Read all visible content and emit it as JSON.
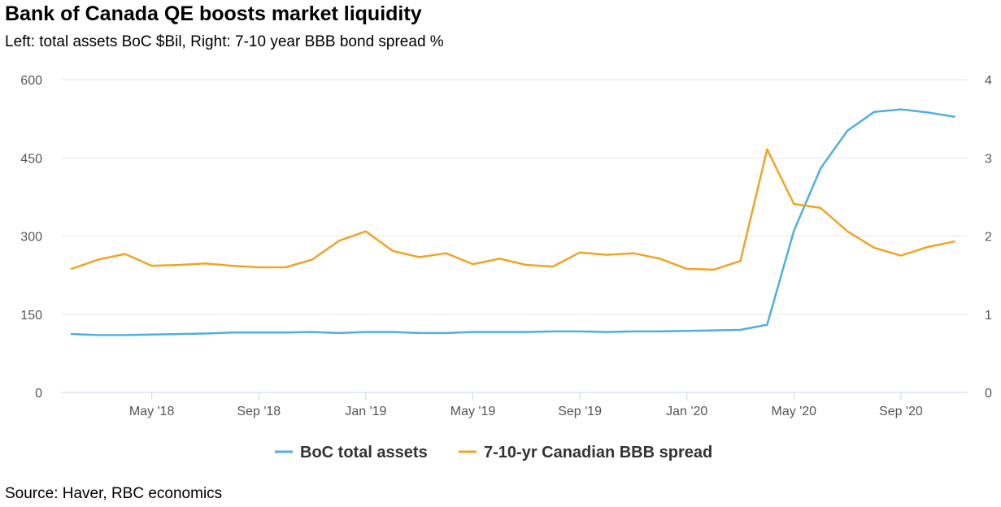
{
  "title": "Bank of Canada QE boosts market liquidity",
  "subtitle": "Left: total assets BoC $Bil, Right: 7-10 year BBB bond spread %",
  "source": "Source: Haver, RBC economics",
  "colors": {
    "assets": "#4fb0dc",
    "spread": "#f0a425",
    "grid": "#e6e6e6",
    "axis": "#ccd6eb"
  },
  "chart_data": {
    "type": "line",
    "title": "Bank of Canada QE boosts market liquidity",
    "subtitle": "Left: total assets BoC $Bil, Right: 7-10 year BBB bond spread %",
    "x": [
      "Feb '18",
      "Mar '18",
      "Apr '18",
      "May '18",
      "Jun '18",
      "Jul '18",
      "Aug '18",
      "Sep '18",
      "Oct '18",
      "Nov '18",
      "Dec '18",
      "Jan '19",
      "Feb '19",
      "Mar '19",
      "Apr '19",
      "May '19",
      "Jun '19",
      "Jul '19",
      "Aug '19",
      "Sep '19",
      "Oct '19",
      "Nov '19",
      "Dec '19",
      "Jan '20",
      "Feb '20",
      "Mar '20",
      "Apr '20",
      "May '20",
      "Jun '20",
      "Jul '20",
      "Aug '20",
      "Sep '20",
      "Oct '20",
      "Nov '20"
    ],
    "x_tick_labels": [
      "May '18",
      "Sep '18",
      "Jan '19",
      "May '19",
      "Sep '19",
      "Jan '20",
      "May '20",
      "Sep '20"
    ],
    "x_tick_positions": [
      3,
      7,
      11,
      15,
      19,
      23,
      27,
      31
    ],
    "y_left": {
      "ticks": [
        "0",
        "150",
        "300",
        "450",
        "600"
      ],
      "ylim": [
        0,
        600
      ]
    },
    "y_right": {
      "ticks": [
        "0",
        "1",
        "2",
        "3",
        "4"
      ],
      "ylim": [
        0,
        4
      ]
    },
    "grid": true,
    "legend_position": "bottom-center",
    "series": [
      {
        "name": "BoC total assets",
        "axis": "left",
        "color": "#4fb0dc",
        "values": [
          112,
          110,
          110,
          111,
          112,
          113,
          115,
          115,
          115,
          116,
          114,
          116,
          116,
          114,
          114,
          116,
          116,
          116,
          117,
          117,
          116,
          117,
          117,
          118,
          119,
          120,
          130,
          310,
          430,
          502,
          538,
          543,
          537,
          529
        ]
      },
      {
        "name": "7-10-yr Canadian BBB spread",
        "axis": "right",
        "color": "#f0a425",
        "values": [
          1.58,
          1.7,
          1.77,
          1.62,
          1.63,
          1.65,
          1.62,
          1.6,
          1.6,
          1.7,
          1.94,
          2.06,
          1.81,
          1.73,
          1.78,
          1.64,
          1.71,
          1.63,
          1.61,
          1.79,
          1.76,
          1.78,
          1.71,
          1.58,
          1.57,
          1.68,
          3.11,
          2.41,
          2.36,
          2.06,
          1.85,
          1.75,
          1.86,
          1.93
        ]
      }
    ]
  }
}
